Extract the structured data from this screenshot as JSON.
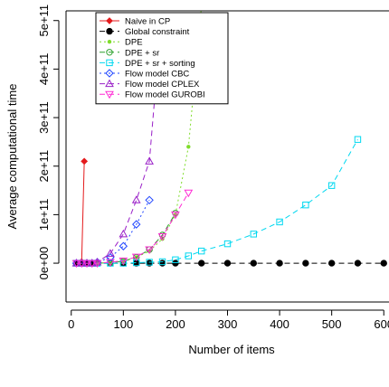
{
  "chart_data": {
    "type": "line",
    "xlabel": "Number of items",
    "ylabel": "Average computational time",
    "xlim": [
      -10,
      610
    ],
    "ylim": [
      -80000000000.0,
      520000000000.0
    ],
    "x_ticks": [
      0,
      100,
      200,
      300,
      400,
      500,
      600
    ],
    "x_tick_labels": [
      "0",
      "100",
      "200",
      "300",
      "400",
      "500",
      "600"
    ],
    "y_ticks": [
      0,
      100000000000.0,
      200000000000.0,
      300000000000.0,
      400000000000.0,
      500000000000.0
    ],
    "y_tick_labels": [
      "0e+00",
      "1e+11",
      "2e+11",
      "3e+11",
      "4e+11",
      "5e+11"
    ],
    "grid": false,
    "legend_position": "top-left",
    "series": [
      {
        "name": "Naive in CP",
        "color": "#e41a1c",
        "marker": "diamond",
        "dash": "solid",
        "points": [
          [
            10,
            0
          ],
          [
            15,
            0
          ],
          [
            20,
            3000000000.0
          ],
          [
            25,
            210000000000.0
          ]
        ]
      },
      {
        "name": "Global constraint",
        "color": "#000000",
        "marker": "circle",
        "dash": "6,4",
        "points": [
          [
            10,
            0
          ],
          [
            20,
            0
          ],
          [
            30,
            0
          ],
          [
            40,
            0
          ],
          [
            50,
            0
          ],
          [
            75,
            0
          ],
          [
            100,
            0
          ],
          [
            125,
            0
          ],
          [
            150,
            0
          ],
          [
            175,
            0
          ],
          [
            200,
            0
          ],
          [
            250,
            0
          ],
          [
            300,
            0
          ],
          [
            350,
            0
          ],
          [
            400,
            0
          ],
          [
            450,
            0
          ],
          [
            500,
            0
          ],
          [
            550,
            0
          ],
          [
            600,
            0
          ]
        ]
      },
      {
        "name": "DPE",
        "color": "#7fdc2a",
        "marker": "dot",
        "dash": "2,3",
        "points": [
          [
            50,
            0
          ],
          [
            75,
            1000000000.0
          ],
          [
            100,
            5000000000.0
          ],
          [
            125,
            12000000000.0
          ],
          [
            150,
            25000000000.0
          ],
          [
            175,
            50000000000.0
          ],
          [
            200,
            100000000000.0
          ],
          [
            225,
            240000000000.0
          ],
          [
            250,
            530000000000.0
          ]
        ]
      },
      {
        "name": "DPE + sr",
        "color": "#2ca02c",
        "marker": "circle-open",
        "dash": "6,4",
        "points": [
          [
            50,
            0
          ],
          [
            75,
            1000000000.0
          ],
          [
            100,
            4000000000.0
          ],
          [
            125,
            12000000000.0
          ],
          [
            150,
            28000000000.0
          ],
          [
            175,
            58000000000.0
          ],
          [
            200,
            103000000000.0
          ]
        ]
      },
      {
        "name": "DPE + sr + sorting",
        "color": "#00d8f0",
        "marker": "square-open",
        "dash": "6,4",
        "points": [
          [
            10,
            0
          ],
          [
            20,
            0
          ],
          [
            30,
            0
          ],
          [
            40,
            0
          ],
          [
            50,
            0
          ],
          [
            75,
            0
          ],
          [
            100,
            0
          ],
          [
            125,
            1000000000.0
          ],
          [
            150,
            2000000000.0
          ],
          [
            175,
            3000000000.0
          ],
          [
            200,
            7000000000.0
          ],
          [
            225,
            15000000000.0
          ],
          [
            250,
            25000000000.0
          ],
          [
            300,
            40000000000.0
          ],
          [
            350,
            60000000000.0
          ],
          [
            400,
            85000000000.0
          ],
          [
            450,
            120000000000.0
          ],
          [
            500,
            160000000000.0
          ],
          [
            550,
            255000000000.0
          ]
        ]
      },
      {
        "name": "Flow model CBC",
        "color": "#1f45ff",
        "marker": "diamond-open",
        "dash": "2,3",
        "points": [
          [
            10,
            0
          ],
          [
            20,
            0
          ],
          [
            30,
            0
          ],
          [
            40,
            0
          ],
          [
            50,
            2000000000.0
          ],
          [
            75,
            12000000000.0
          ],
          [
            100,
            35000000000.0
          ],
          [
            125,
            80000000000.0
          ],
          [
            150,
            130000000000.0
          ]
        ]
      },
      {
        "name": "Flow model CPLEX",
        "color": "#9a20c8",
        "marker": "triangle-open",
        "dash": "6,4",
        "points": [
          [
            10,
            0
          ],
          [
            20,
            0
          ],
          [
            30,
            0
          ],
          [
            40,
            0
          ],
          [
            50,
            2000000000.0
          ],
          [
            75,
            20000000000.0
          ],
          [
            100,
            60000000000.0
          ],
          [
            125,
            130000000000.0
          ],
          [
            150,
            210000000000.0
          ],
          [
            175,
            530000000000.0
          ]
        ]
      },
      {
        "name": "Flow model GUROBI",
        "color": "#ff2ad4",
        "marker": "triangle-down-open",
        "dash": "6,4",
        "points": [
          [
            10,
            0
          ],
          [
            20,
            0
          ],
          [
            30,
            0
          ],
          [
            40,
            0
          ],
          [
            50,
            0
          ],
          [
            75,
            2000000000.0
          ],
          [
            100,
            5000000000.0
          ],
          [
            125,
            13000000000.0
          ],
          [
            150,
            28000000000.0
          ],
          [
            175,
            55000000000.0
          ],
          [
            200,
            100000000000.0
          ],
          [
            225,
            145000000000.0
          ]
        ]
      }
    ]
  }
}
